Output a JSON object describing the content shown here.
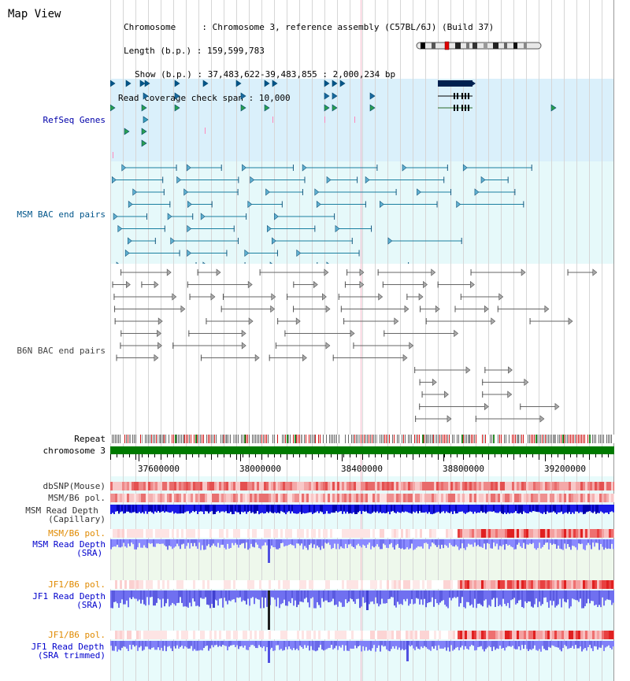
{
  "header": {
    "title": "Map View",
    "chromosome_label": "Chromosome",
    "chromosome_value": "Chromosome 3, reference assembly (C57BL/6J) (Build 37)",
    "length_label": "Length (b.p.)",
    "length_value": "159,599,783",
    "show_label": "Show (b.p.)",
    "show_value": "37,483,622-39,483,855 : 2,000,234 bp",
    "coverage_label": "Read coverage check span",
    "coverage_value": "10,000"
  },
  "tracks": {
    "refseq": "RefSeq Genes",
    "msm_bac": "MSM BAC end pairs",
    "b6n_bac": "B6N BAC end pairs",
    "repeat": "Repeat",
    "chromosome": "chromosome 3",
    "dbsnp": "dbSNP(Mouse)",
    "msm_b6_pol_1": "MSM/B6 pol.",
    "msm_depth_cap_1": "MSM Read Depth",
    "msm_depth_cap_2": "(Capillary)",
    "msm_b6_pol_2": "MSM/B6 pol.",
    "msm_depth_sra_1": "MSM Read Depth",
    "msm_depth_sra_2": "(SRA)",
    "jf1_b6_pol_1": "JF1/B6 pol.",
    "jf1_depth_sra_1": "JF1 Read Depth",
    "jf1_depth_sra_2": "(SRA)",
    "jf1_b6_pol_2": "JF1/B6 pol.",
    "jf1_depth_trim_1": "JF1 Read Depth",
    "jf1_depth_trim_2": "(SRA trimmed)"
  },
  "axis": {
    "ticks": [
      "37600000",
      "38000000",
      "38400000",
      "38800000",
      "39200000"
    ]
  },
  "colors": {
    "refseq_bg": "#daf0fb",
    "bac_bg": "#e6f9fa",
    "grid_line": "#c8c8c8",
    "chromosome_bar": "#007a00",
    "msm_label": "#00558a",
    "refseq_label": "#0000aa",
    "pol_label": "#e08a00",
    "sra_label": "#0000cc"
  }
}
